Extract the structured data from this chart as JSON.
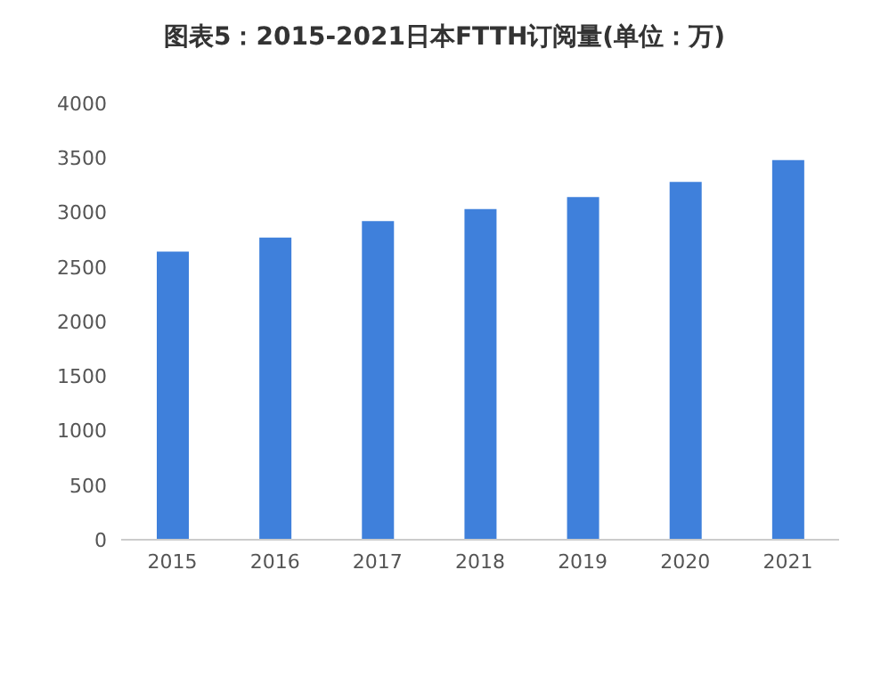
{
  "chart_data": {
    "type": "bar",
    "title": "图表5：2015-2021日本FTTH订阅量(单位：万)",
    "categories": [
      "2015",
      "2016",
      "2017",
      "2018",
      "2019",
      "2020",
      "2021"
    ],
    "values": [
      2640,
      2770,
      2920,
      3030,
      3140,
      3280,
      3480
    ],
    "color": "#3f80db",
    "ylim": [
      0,
      4000
    ],
    "yticks": [
      0,
      500,
      1000,
      1500,
      2000,
      2500,
      3000,
      3500,
      4000
    ],
    "grid": false
  }
}
